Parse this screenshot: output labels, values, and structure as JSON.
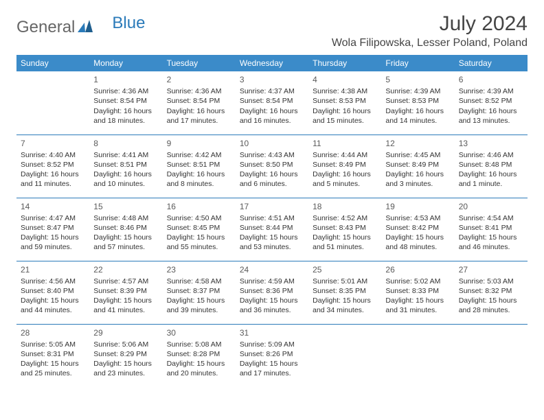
{
  "logo": {
    "general": "General",
    "blue": "Blue"
  },
  "header": {
    "month": "July 2024",
    "location": "Wola Filipowska, Lesser Poland, Poland"
  },
  "colors": {
    "header_bg": "#3b8bc9",
    "header_text": "#ffffff",
    "border": "#2a7ab9",
    "text": "#333333",
    "logo_blue": "#2a7ab9"
  },
  "weekdays": [
    "Sunday",
    "Monday",
    "Tuesday",
    "Wednesday",
    "Thursday",
    "Friday",
    "Saturday"
  ],
  "first_weekday_index": 1,
  "days": [
    {
      "n": 1,
      "sr": "4:36 AM",
      "ss": "8:54 PM",
      "dl": "16 hours and 18 minutes."
    },
    {
      "n": 2,
      "sr": "4:36 AM",
      "ss": "8:54 PM",
      "dl": "16 hours and 17 minutes."
    },
    {
      "n": 3,
      "sr": "4:37 AM",
      "ss": "8:54 PM",
      "dl": "16 hours and 16 minutes."
    },
    {
      "n": 4,
      "sr": "4:38 AM",
      "ss": "8:53 PM",
      "dl": "16 hours and 15 minutes."
    },
    {
      "n": 5,
      "sr": "4:39 AM",
      "ss": "8:53 PM",
      "dl": "16 hours and 14 minutes."
    },
    {
      "n": 6,
      "sr": "4:39 AM",
      "ss": "8:52 PM",
      "dl": "16 hours and 13 minutes."
    },
    {
      "n": 7,
      "sr": "4:40 AM",
      "ss": "8:52 PM",
      "dl": "16 hours and 11 minutes."
    },
    {
      "n": 8,
      "sr": "4:41 AM",
      "ss": "8:51 PM",
      "dl": "16 hours and 10 minutes."
    },
    {
      "n": 9,
      "sr": "4:42 AM",
      "ss": "8:51 PM",
      "dl": "16 hours and 8 minutes."
    },
    {
      "n": 10,
      "sr": "4:43 AM",
      "ss": "8:50 PM",
      "dl": "16 hours and 6 minutes."
    },
    {
      "n": 11,
      "sr": "4:44 AM",
      "ss": "8:49 PM",
      "dl": "16 hours and 5 minutes."
    },
    {
      "n": 12,
      "sr": "4:45 AM",
      "ss": "8:49 PM",
      "dl": "16 hours and 3 minutes."
    },
    {
      "n": 13,
      "sr": "4:46 AM",
      "ss": "8:48 PM",
      "dl": "16 hours and 1 minute."
    },
    {
      "n": 14,
      "sr": "4:47 AM",
      "ss": "8:47 PM",
      "dl": "15 hours and 59 minutes."
    },
    {
      "n": 15,
      "sr": "4:48 AM",
      "ss": "8:46 PM",
      "dl": "15 hours and 57 minutes."
    },
    {
      "n": 16,
      "sr": "4:50 AM",
      "ss": "8:45 PM",
      "dl": "15 hours and 55 minutes."
    },
    {
      "n": 17,
      "sr": "4:51 AM",
      "ss": "8:44 PM",
      "dl": "15 hours and 53 minutes."
    },
    {
      "n": 18,
      "sr": "4:52 AM",
      "ss": "8:43 PM",
      "dl": "15 hours and 51 minutes."
    },
    {
      "n": 19,
      "sr": "4:53 AM",
      "ss": "8:42 PM",
      "dl": "15 hours and 48 minutes."
    },
    {
      "n": 20,
      "sr": "4:54 AM",
      "ss": "8:41 PM",
      "dl": "15 hours and 46 minutes."
    },
    {
      "n": 21,
      "sr": "4:56 AM",
      "ss": "8:40 PM",
      "dl": "15 hours and 44 minutes."
    },
    {
      "n": 22,
      "sr": "4:57 AM",
      "ss": "8:39 PM",
      "dl": "15 hours and 41 minutes."
    },
    {
      "n": 23,
      "sr": "4:58 AM",
      "ss": "8:37 PM",
      "dl": "15 hours and 39 minutes."
    },
    {
      "n": 24,
      "sr": "4:59 AM",
      "ss": "8:36 PM",
      "dl": "15 hours and 36 minutes."
    },
    {
      "n": 25,
      "sr": "5:01 AM",
      "ss": "8:35 PM",
      "dl": "15 hours and 34 minutes."
    },
    {
      "n": 26,
      "sr": "5:02 AM",
      "ss": "8:33 PM",
      "dl": "15 hours and 31 minutes."
    },
    {
      "n": 27,
      "sr": "5:03 AM",
      "ss": "8:32 PM",
      "dl": "15 hours and 28 minutes."
    },
    {
      "n": 28,
      "sr": "5:05 AM",
      "ss": "8:31 PM",
      "dl": "15 hours and 25 minutes."
    },
    {
      "n": 29,
      "sr": "5:06 AM",
      "ss": "8:29 PM",
      "dl": "15 hours and 23 minutes."
    },
    {
      "n": 30,
      "sr": "5:08 AM",
      "ss": "8:28 PM",
      "dl": "15 hours and 20 minutes."
    },
    {
      "n": 31,
      "sr": "5:09 AM",
      "ss": "8:26 PM",
      "dl": "15 hours and 17 minutes."
    }
  ],
  "labels": {
    "sunrise": "Sunrise:",
    "sunset": "Sunset:",
    "daylight": "Daylight:"
  }
}
